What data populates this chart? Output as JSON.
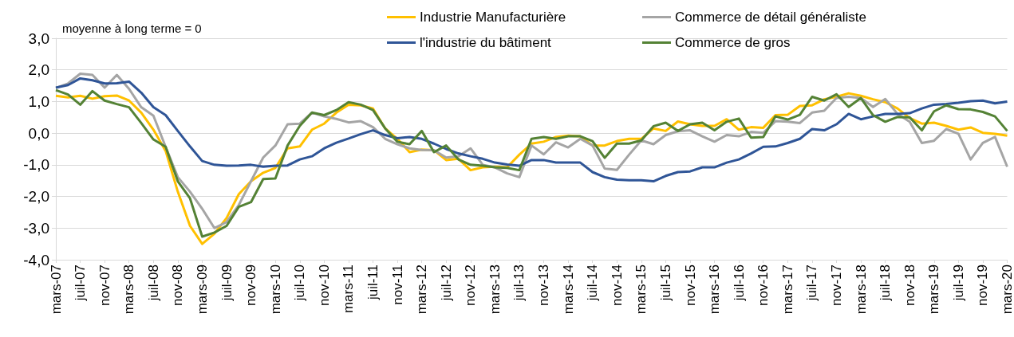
{
  "chart_data": {
    "type": "line",
    "annotations": [
      "moyenne à long terme = 0"
    ],
    "x": [
      "2007-03",
      "2007-05",
      "2007-07",
      "2007-09",
      "2007-11",
      "2008-01",
      "2008-03",
      "2008-05",
      "2008-07",
      "2008-09",
      "2008-11",
      "2009-01",
      "2009-03",
      "2009-05",
      "2009-07",
      "2009-09",
      "2009-11",
      "2010-01",
      "2010-03",
      "2010-05",
      "2010-07",
      "2010-09",
      "2010-11",
      "2011-01",
      "2011-03",
      "2011-05",
      "2011-07",
      "2011-09",
      "2011-11",
      "2012-01",
      "2012-03",
      "2012-05",
      "2012-07",
      "2012-09",
      "2012-11",
      "2013-01",
      "2013-03",
      "2013-05",
      "2013-07",
      "2013-09",
      "2013-11",
      "2014-01",
      "2014-03",
      "2014-05",
      "2014-07",
      "2014-09",
      "2014-11",
      "2015-01",
      "2015-03",
      "2015-05",
      "2015-07",
      "2015-09",
      "2015-11",
      "2016-01",
      "2016-03",
      "2016-05",
      "2016-07",
      "2016-09",
      "2016-11",
      "2017-01",
      "2017-03",
      "2017-05",
      "2017-07",
      "2017-09",
      "2017-11",
      "2018-01",
      "2018-03",
      "2018-05",
      "2018-07",
      "2018-09",
      "2018-11",
      "2019-01",
      "2019-03",
      "2019-05",
      "2019-07",
      "2019-09",
      "2019-11",
      "2020-01",
      "2020-03"
    ],
    "series": [
      {
        "name": "Industrie Manufacturière",
        "color": "#ffc000",
        "values": [
          1.18,
          1.13,
          1.18,
          1.09,
          1.17,
          1.19,
          1.03,
          0.65,
          0.11,
          -0.56,
          -1.85,
          -2.93,
          -3.5,
          -3.18,
          -2.68,
          -1.93,
          -1.52,
          -1.25,
          -1.1,
          -0.48,
          -0.42,
          0.11,
          0.3,
          0.65,
          0.9,
          0.88,
          0.78,
          0.15,
          -0.18,
          -0.6,
          -0.52,
          -0.54,
          -0.85,
          -0.81,
          -1.17,
          -1.08,
          -1.06,
          -1.08,
          -0.68,
          -0.33,
          -0.27,
          -0.12,
          -0.08,
          -0.1,
          -0.39,
          -0.39,
          -0.25,
          -0.18,
          -0.18,
          0.15,
          0.07,
          0.37,
          0.28,
          0.23,
          0.23,
          0.44,
          0.11,
          0.19,
          0.17,
          0.57,
          0.58,
          0.86,
          0.88,
          1.07,
          1.15,
          1.26,
          1.18,
          1.07,
          0.98,
          0.78,
          0.48,
          0.3,
          0.33,
          0.23,
          0.11,
          0.18,
          0.01,
          -0.02,
          -0.08
        ]
      },
      {
        "name": "Commerce de détail généraliste",
        "color": "#a5a5a5",
        "values": [
          1.43,
          1.57,
          1.88,
          1.84,
          1.44,
          1.84,
          1.4,
          0.82,
          0.55,
          -0.43,
          -1.39,
          -1.85,
          -2.39,
          -3.0,
          -2.81,
          -2.27,
          -1.52,
          -0.77,
          -0.39,
          0.28,
          0.3,
          0.65,
          0.53,
          0.45,
          0.34,
          0.38,
          0.19,
          -0.18,
          -0.35,
          -0.48,
          -0.53,
          -0.54,
          -0.77,
          -0.73,
          -0.48,
          -1.0,
          -1.08,
          -1.27,
          -1.39,
          -0.39,
          -0.67,
          -0.29,
          -0.45,
          -0.18,
          -0.39,
          -1.12,
          -1.16,
          -0.68,
          -0.23,
          -0.35,
          -0.06,
          0.06,
          0.09,
          -0.1,
          -0.27,
          -0.06,
          -0.1,
          0.04,
          0.01,
          0.38,
          0.36,
          0.32,
          0.65,
          0.71,
          1.11,
          1.15,
          1.11,
          0.83,
          1.08,
          0.61,
          0.36,
          -0.31,
          -0.24,
          0.13,
          -0.02,
          -0.83,
          -0.31,
          -0.12,
          -1.06
        ]
      },
      {
        "name": "l'industrie du bâtiment",
        "color": "#2f5597",
        "values": [
          1.44,
          1.52,
          1.73,
          1.67,
          1.57,
          1.58,
          1.63,
          1.28,
          0.82,
          0.57,
          0.07,
          -0.42,
          -0.88,
          -1.0,
          -1.03,
          -1.02,
          -1.0,
          -1.06,
          -1.03,
          -1.02,
          -0.83,
          -0.73,
          -0.48,
          -0.3,
          -0.17,
          -0.03,
          0.09,
          -0.06,
          -0.16,
          -0.12,
          -0.18,
          -0.33,
          -0.5,
          -0.64,
          -0.73,
          -0.81,
          -0.93,
          -0.99,
          -1.03,
          -0.85,
          -0.85,
          -0.93,
          -0.93,
          -0.93,
          -1.23,
          -1.39,
          -1.47,
          -1.49,
          -1.49,
          -1.52,
          -1.35,
          -1.23,
          -1.21,
          -1.08,
          -1.08,
          -0.93,
          -0.83,
          -0.64,
          -0.43,
          -0.42,
          -0.31,
          -0.18,
          0.13,
          0.09,
          0.28,
          0.61,
          0.44,
          0.53,
          0.61,
          0.61,
          0.63,
          0.78,
          0.9,
          0.92,
          0.96,
          1.01,
          1.03,
          0.94,
          1.0
        ]
      },
      {
        "name": "Commerce de gros",
        "color": "#548235",
        "values": [
          1.36,
          1.22,
          0.9,
          1.33,
          1.03,
          0.92,
          0.82,
          0.32,
          -0.2,
          -0.43,
          -1.52,
          -2.06,
          -3.27,
          -3.14,
          -2.93,
          -2.33,
          -2.18,
          -1.45,
          -1.43,
          -0.39,
          0.23,
          0.65,
          0.57,
          0.73,
          0.98,
          0.9,
          0.73,
          0.15,
          -0.27,
          -0.35,
          0.07,
          -0.6,
          -0.39,
          -0.83,
          -1.0,
          -1.03,
          -1.08,
          -1.1,
          -1.17,
          -0.18,
          -0.12,
          -0.18,
          -0.1,
          -0.1,
          -0.25,
          -0.78,
          -0.33,
          -0.33,
          -0.23,
          0.22,
          0.33,
          0.07,
          0.28,
          0.33,
          0.09,
          0.36,
          0.46,
          -0.14,
          -0.12,
          0.53,
          0.43,
          0.58,
          1.15,
          1.03,
          1.23,
          0.83,
          1.11,
          0.57,
          0.36,
          0.51,
          0.5,
          0.09,
          0.69,
          0.88,
          0.76,
          0.75,
          0.67,
          0.53,
          0.07
        ]
      }
    ],
    "xlim": [
      "2007-03",
      "2020-03"
    ],
    "xticks": [
      {
        "value": "2007-03",
        "label": "mars-07"
      },
      {
        "value": "2007-07",
        "label": "juil-07"
      },
      {
        "value": "2007-11",
        "label": "nov-07"
      },
      {
        "value": "2008-03",
        "label": "mars-08"
      },
      {
        "value": "2008-07",
        "label": "juil-08"
      },
      {
        "value": "2008-11",
        "label": "nov-08"
      },
      {
        "value": "2009-03",
        "label": "mars-09"
      },
      {
        "value": "2009-07",
        "label": "juil-09"
      },
      {
        "value": "2009-11",
        "label": "nov-09"
      },
      {
        "value": "2010-03",
        "label": "mars-10"
      },
      {
        "value": "2010-07",
        "label": "juil-10"
      },
      {
        "value": "2010-11",
        "label": "nov-10"
      },
      {
        "value": "2011-03",
        "label": "mars-11"
      },
      {
        "value": "2011-07",
        "label": "juil-11"
      },
      {
        "value": "2011-11",
        "label": "nov-11"
      },
      {
        "value": "2012-03",
        "label": "mars-12"
      },
      {
        "value": "2012-07",
        "label": "juil-12"
      },
      {
        "value": "2012-11",
        "label": "nov-12"
      },
      {
        "value": "2013-03",
        "label": "mars-13"
      },
      {
        "value": "2013-07",
        "label": "juil-13"
      },
      {
        "value": "2013-11",
        "label": "nov-13"
      },
      {
        "value": "2014-03",
        "label": "mars-14"
      },
      {
        "value": "2014-07",
        "label": "juil-14"
      },
      {
        "value": "2014-11",
        "label": "nov-14"
      },
      {
        "value": "2015-03",
        "label": "mars-15"
      },
      {
        "value": "2015-07",
        "label": "juil-15"
      },
      {
        "value": "2015-11",
        "label": "nov-15"
      },
      {
        "value": "2016-03",
        "label": "mars-16"
      },
      {
        "value": "2016-07",
        "label": "juil-16"
      },
      {
        "value": "2016-11",
        "label": "nov-16"
      },
      {
        "value": "2017-03",
        "label": "mars-17"
      },
      {
        "value": "2017-07",
        "label": "juil-17"
      },
      {
        "value": "2017-11",
        "label": "nov-17"
      },
      {
        "value": "2018-03",
        "label": "mars-18"
      },
      {
        "value": "2018-07",
        "label": "juil-18"
      },
      {
        "value": "2018-11",
        "label": "nov-18"
      },
      {
        "value": "2019-03",
        "label": "mars-19"
      },
      {
        "value": "2019-07",
        "label": "juil-19"
      },
      {
        "value": "2019-11",
        "label": "nov-19"
      },
      {
        "value": "2020-03",
        "label": "mars-20"
      }
    ],
    "ylim": [
      -4,
      3
    ],
    "yticks": [
      {
        "value": -4,
        "label": "-4,0"
      },
      {
        "value": -3,
        "label": "-3,0"
      },
      {
        "value": -2,
        "label": "-2,0"
      },
      {
        "value": -1,
        "label": "-1,0"
      },
      {
        "value": 0,
        "label": "0,0"
      },
      {
        "value": 1,
        "label": "1,0"
      },
      {
        "value": 2,
        "label": "2,0"
      },
      {
        "value": 3,
        "label": "3,0"
      }
    ],
    "grid": "y",
    "legend": "top",
    "marker": "none",
    "line_style": "solid"
  }
}
